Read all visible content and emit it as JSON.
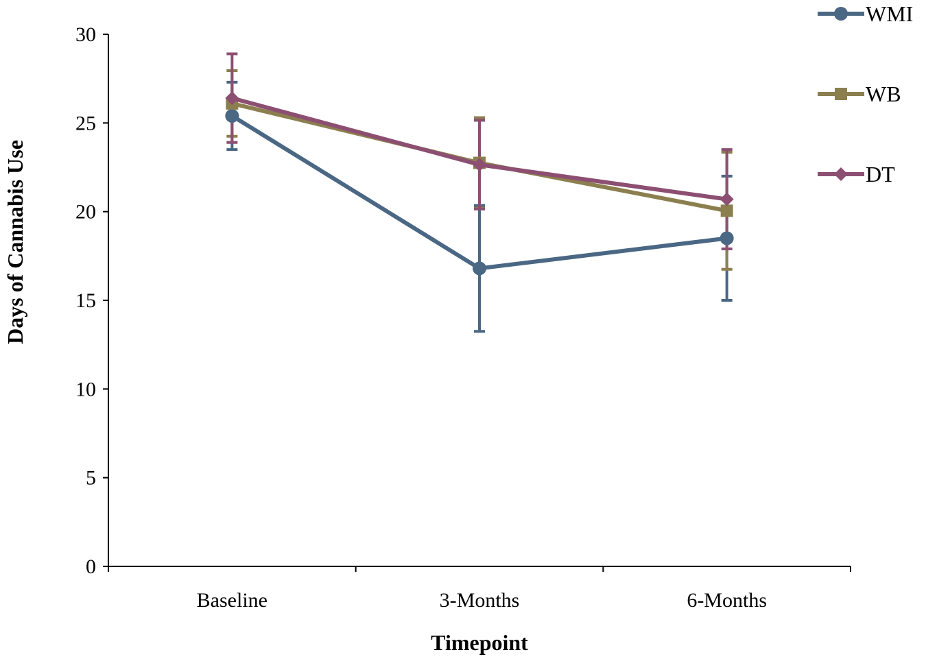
{
  "chart_data": {
    "type": "line",
    "title": "",
    "xlabel": "Timepoint",
    "ylabel": "Days of Cannabis Use",
    "categories": [
      "Baseline",
      "3-Months",
      "6-Months"
    ],
    "ylim": [
      0,
      30
    ],
    "yticks": [
      0,
      5,
      10,
      15,
      20,
      25,
      30
    ],
    "grid": false,
    "legend_position": "top-right",
    "series": [
      {
        "name": "WMI",
        "values": [
          25.4,
          16.8,
          18.5
        ],
        "errors": [
          1.9,
          3.55,
          3.5
        ],
        "color": "#4a6784",
        "marker": "circle"
      },
      {
        "name": "WB",
        "values": [
          26.1,
          22.75,
          20.05
        ],
        "errors": [
          1.85,
          2.55,
          3.3
        ],
        "color": "#8c7f4f",
        "marker": "square"
      },
      {
        "name": "DT",
        "values": [
          26.4,
          22.65,
          20.7
        ],
        "errors": [
          2.5,
          2.5,
          2.8
        ],
        "color": "#8c4f72",
        "marker": "diamond"
      }
    ]
  }
}
